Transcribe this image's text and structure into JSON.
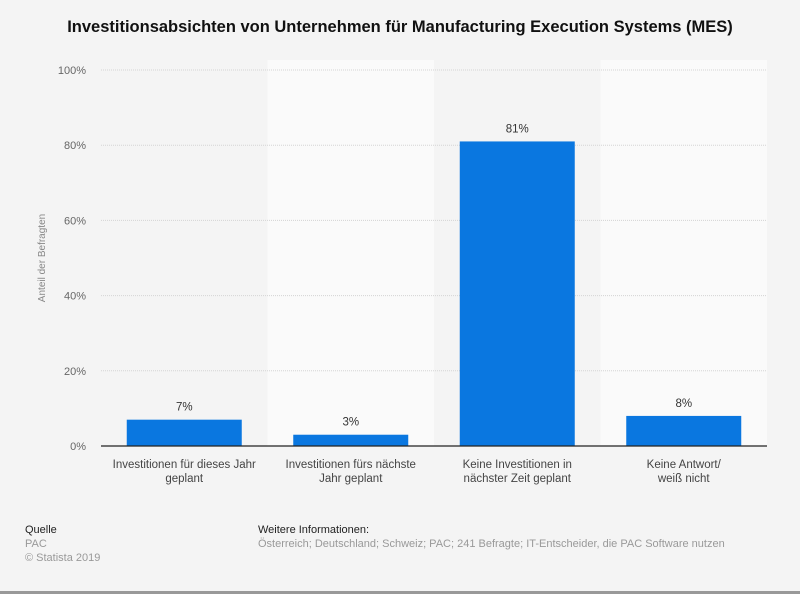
{
  "chart_data": {
    "type": "bar",
    "title": "Investitionsabsichten von Unternehmen für Manufacturing Execution Systems (MES)",
    "ylabel": "Anteil der Befragten",
    "xlabel": "",
    "ylim": [
      0,
      100
    ],
    "yticks": [
      "0%",
      "20%",
      "40%",
      "60%",
      "80%",
      "100%"
    ],
    "categories": [
      [
        "Investitionen für dieses Jahr",
        "geplant"
      ],
      [
        "Investitionen fürs nächste",
        "Jahr geplant"
      ],
      [
        "Keine Investitionen in",
        "nächster Zeit geplant"
      ],
      [
        "Keine Antwort/",
        "weiß nicht"
      ]
    ],
    "values": [
      7,
      3,
      81,
      8
    ],
    "data_labels": [
      "7%",
      "3%",
      "81%",
      "8%"
    ],
    "grid": true,
    "bar_color": "#0a77e0"
  },
  "footer": {
    "source_heading": "Quelle",
    "source": "PAC",
    "copyright": "© Statista 2019",
    "info_heading": "Weitere Informationen:",
    "info": "Österreich; Deutschland; Schweiz; PAC; 241 Befragte; IT-Entscheider, die PAC Software nutzen"
  }
}
